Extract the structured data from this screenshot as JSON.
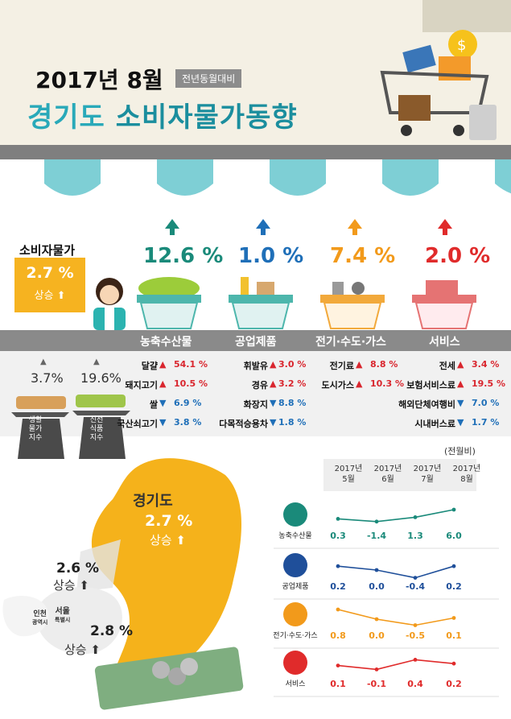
{
  "header": {
    "date_title": "2017년 8월",
    "badge": "전년동월대비",
    "main_title_region": "경기도",
    "main_title_rest": "소비자물가동향"
  },
  "cpi": {
    "label": "소비자물가",
    "value": "2.7 %",
    "status": "상승"
  },
  "categories": [
    {
      "name": "농축수산물",
      "value": "12.6 %",
      "color": "#1a8a7a"
    },
    {
      "name": "공업제품",
      "value": "1.0 %",
      "color": "#1f6fb8"
    },
    {
      "name": "전기·수도·가스",
      "value": "7.4 %",
      "color": "#f29a1b"
    },
    {
      "name": "서비스",
      "value": "2.0 %",
      "color": "#e02b2b"
    }
  ],
  "indices": [
    {
      "value": "3.7%",
      "label_lines": [
        "생활",
        "물가",
        "지수"
      ]
    },
    {
      "value": "19.6%",
      "label_lines": [
        "신선",
        "식품",
        "지수"
      ]
    }
  ],
  "items": {
    "agri": [
      {
        "name": "달걀",
        "dir": "up",
        "val": "54.1 %"
      },
      {
        "name": "돼지고기",
        "dir": "up",
        "val": "10.5 %"
      },
      {
        "name": "쌀",
        "dir": "dn",
        "val": "6.9 %"
      },
      {
        "name": "국산쇠고기",
        "dir": "dn",
        "val": "3.8 %"
      }
    ],
    "industrial": [
      {
        "name": "휘발유",
        "dir": "up",
        "val": "3.0 %"
      },
      {
        "name": "경유",
        "dir": "up",
        "val": "3.2 %"
      },
      {
        "name": "화장지",
        "dir": "dn",
        "val": "8.8 %"
      },
      {
        "name": "다목적승용차",
        "dir": "dn",
        "val": "1.8 %"
      }
    ],
    "utility": [
      {
        "name": "전기료",
        "dir": "up",
        "val": "8.8 %"
      },
      {
        "name": "도시가스",
        "dir": "up",
        "val": "10.3 %"
      }
    ],
    "service": [
      {
        "name": "전세",
        "dir": "up",
        "val": "3.4 %"
      },
      {
        "name": "보험서비스료",
        "dir": "up",
        "val": "19.5 %"
      },
      {
        "name": "해외단체여행비",
        "dir": "dn",
        "val": "7.0 %"
      },
      {
        "name": "시내버스료",
        "dir": "dn",
        "val": "1.7 %"
      }
    ]
  },
  "map": {
    "gyeonggi_name": "경기도",
    "gyeonggi_value": "2.7 %",
    "gyeonggi_status": "상승",
    "incheon_value": "2.6 %",
    "incheon_status": "상승",
    "incheon_name": "인천",
    "incheon_sub": "광역시",
    "seoul_name": "서울",
    "seoul_sub": "특별시",
    "seoul_value": "2.8 %",
    "seoul_status": "상승"
  },
  "monthly": {
    "unit_label": "(전월비)",
    "months": [
      {
        "year": "2017년",
        "month": "5월"
      },
      {
        "year": "2017년",
        "month": "6월"
      },
      {
        "year": "2017년",
        "month": "7월"
      },
      {
        "year": "2017년",
        "month": "8월"
      }
    ],
    "rows": [
      {
        "label": "농축수산물",
        "color": "#1a8a7a",
        "values": [
          0.3,
          -1.4,
          1.3,
          6.0
        ],
        "labels": [
          "0.3",
          "-1.4",
          "1.3",
          "6.0"
        ]
      },
      {
        "label": "공업제품",
        "color": "#1f4f9a",
        "values": [
          0.2,
          0.0,
          -0.4,
          0.2
        ],
        "labels": [
          "0.2",
          "0.0",
          "-0.4",
          "0.2"
        ]
      },
      {
        "label": "전기·수도·가스",
        "color": "#f29a1b",
        "values": [
          0.8,
          0.0,
          -0.5,
          0.1
        ],
        "labels": [
          "0.8",
          "0.0",
          "-0.5",
          "0.1"
        ]
      },
      {
        "label": "서비스",
        "color": "#e02b2b",
        "values": [
          0.1,
          -0.1,
          0.4,
          0.2
        ],
        "labels": [
          "0.1",
          "-0.1",
          "0.4",
          "0.2"
        ]
      }
    ]
  }
}
